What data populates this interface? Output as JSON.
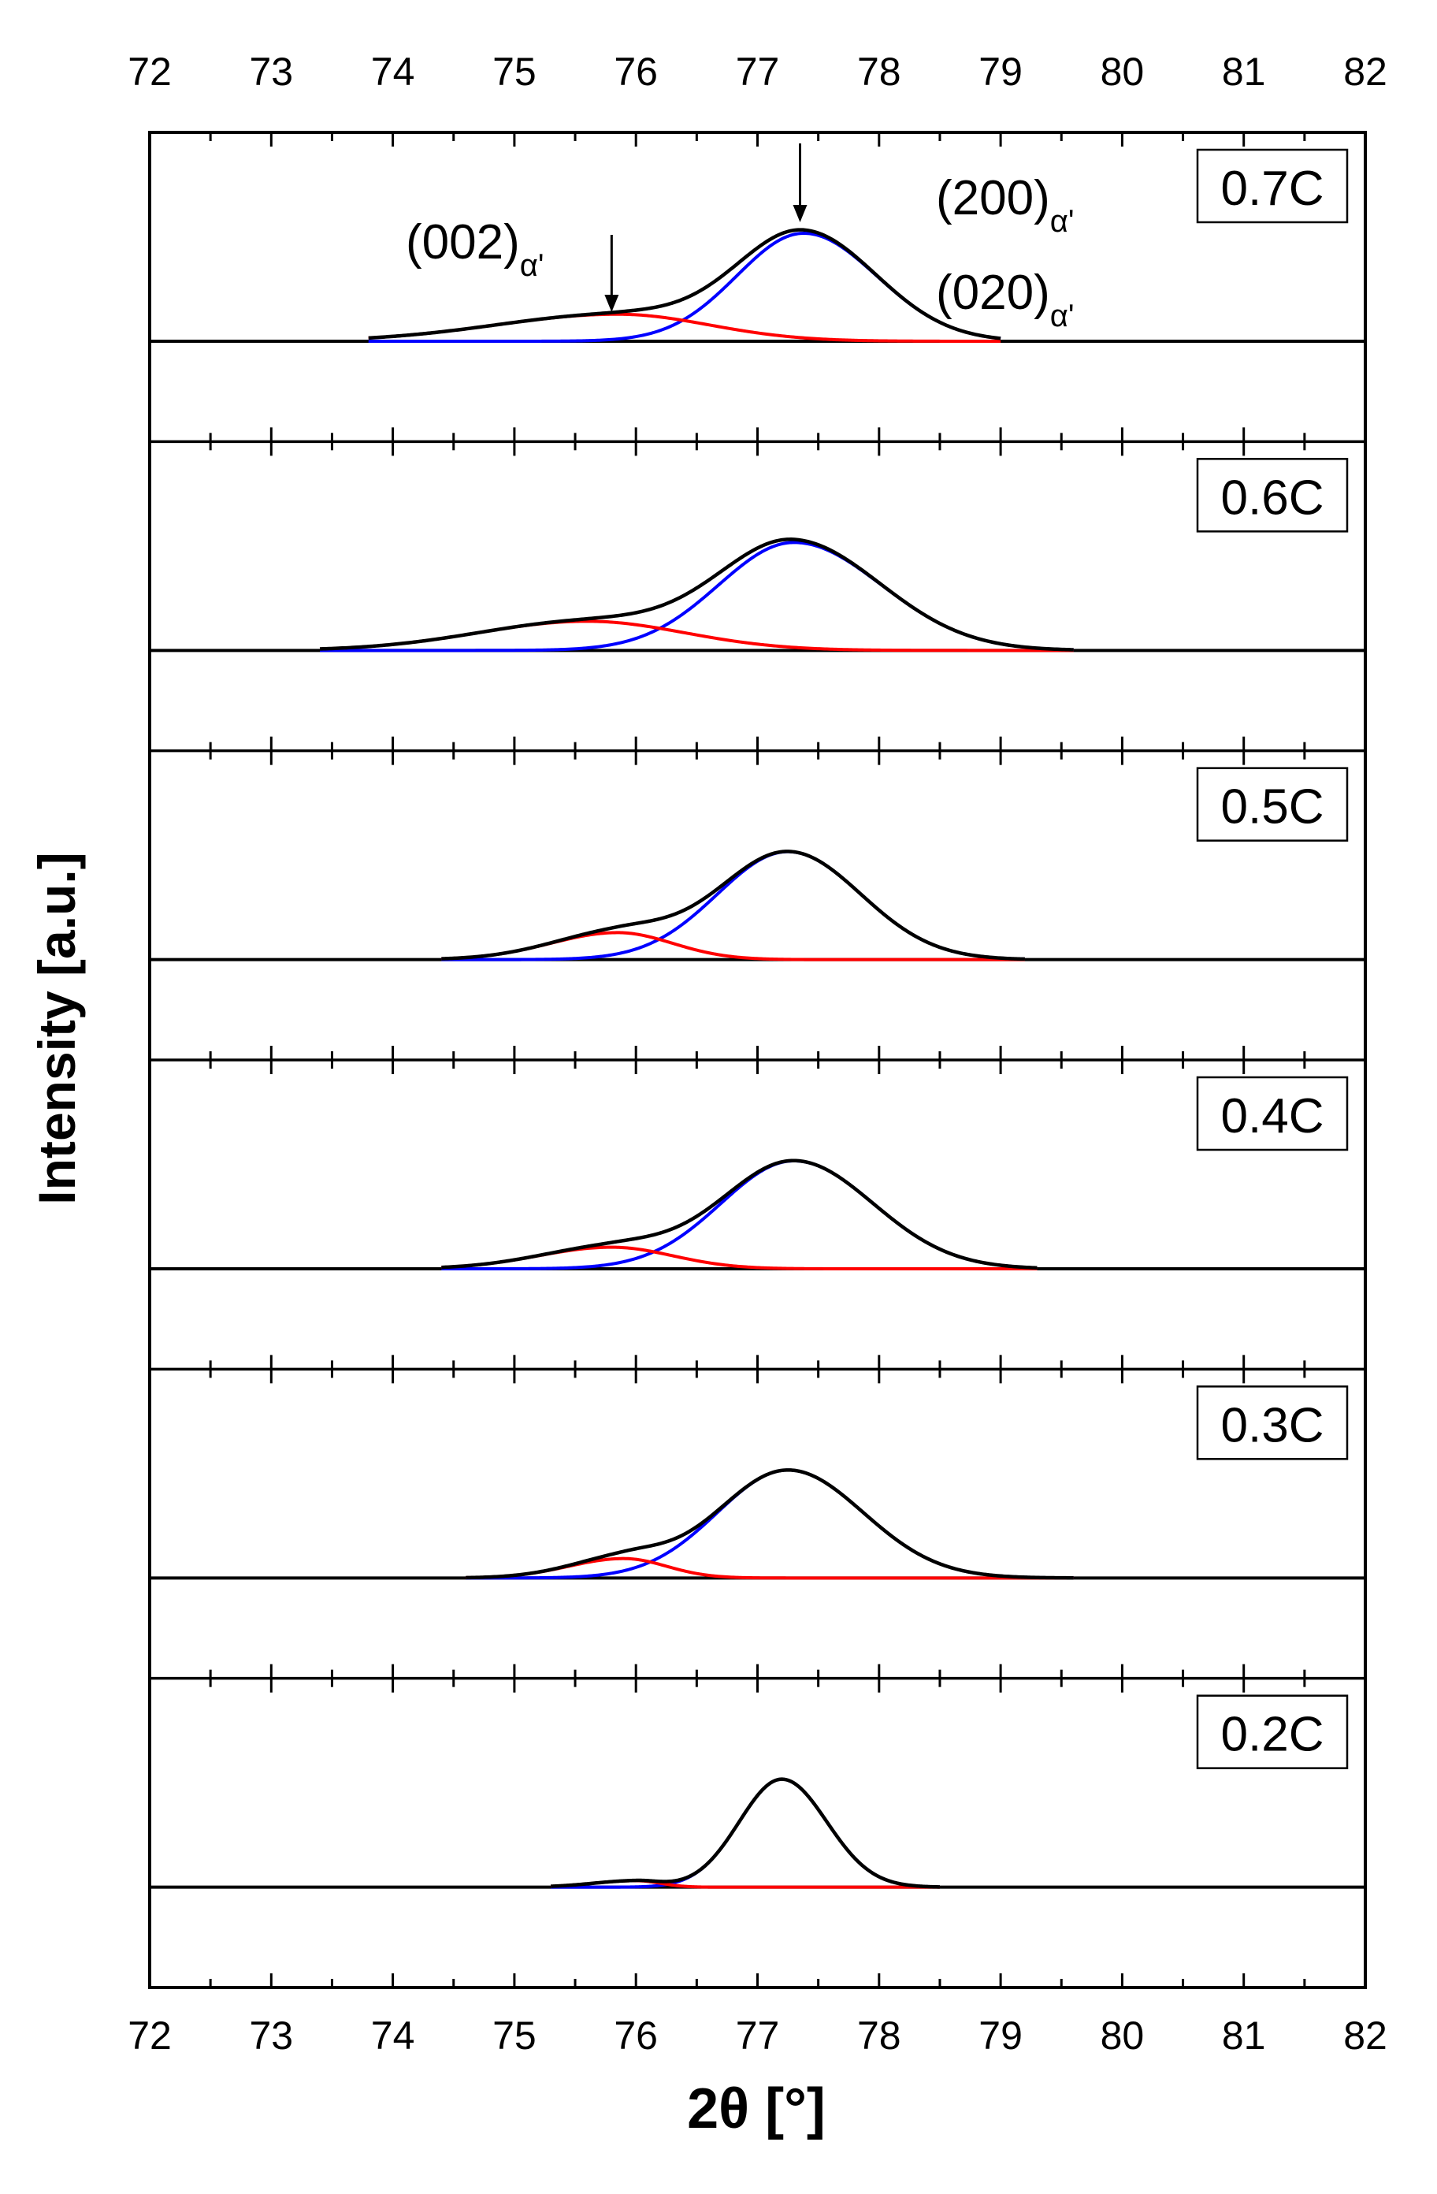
{
  "chart_data": {
    "type": "line",
    "title": "",
    "xlabel": "2θ [°]",
    "ylabel": "Intensity [a.u.]",
    "xlim": [
      72,
      82
    ],
    "ylim": [
      0,
      1
    ],
    "x_ticks": [
      "72",
      "73",
      "74",
      "75",
      "76",
      "77",
      "78",
      "79",
      "80",
      "81",
      "82"
    ],
    "series_colors": {
      "sum": "#000000",
      "peak_002": "#ff0000",
      "peak_200_020": "#0000ff"
    },
    "annotations": [
      {
        "main": "(002)",
        "sub": "α'",
        "x": 75.8
      },
      {
        "main": "(200)",
        "sub": "α'",
        "x": 77.35
      },
      {
        "main": "(020)",
        "sub": "α'",
        "x": 77.35
      }
    ],
    "panels": [
      {
        "label": "0.7C",
        "x_range": [
          73.8,
          79.0
        ],
        "peak_002": {
          "center": 75.85,
          "height": 0.25,
          "sigma_left": 1.0,
          "sigma_right": 0.75
        },
        "peak_200_020": {
          "center": 77.38,
          "height": 1.0,
          "sigma_left": 0.55,
          "sigma_right": 0.6
        }
      },
      {
        "label": "0.6C",
        "x_range": [
          73.4,
          79.6
        ],
        "peak_002": {
          "center": 75.6,
          "height": 0.27,
          "sigma_left": 0.9,
          "sigma_right": 0.8
        },
        "peak_200_020": {
          "center": 77.3,
          "height": 1.0,
          "sigma_left": 0.62,
          "sigma_right": 0.72
        }
      },
      {
        "label": "0.5C",
        "x_range": [
          74.4,
          79.2
        ],
        "peak_002": {
          "center": 75.85,
          "height": 0.25,
          "sigma_left": 0.55,
          "sigma_right": 0.45
        },
        "peak_200_020": {
          "center": 77.25,
          "height": 1.0,
          "sigma_left": 0.58,
          "sigma_right": 0.6
        }
      },
      {
        "label": "0.4C",
        "x_range": [
          74.4,
          79.3
        ],
        "peak_002": {
          "center": 75.8,
          "height": 0.2,
          "sigma_left": 0.6,
          "sigma_right": 0.5
        },
        "peak_200_020": {
          "center": 77.3,
          "height": 1.0,
          "sigma_left": 0.6,
          "sigma_right": 0.65
        }
      },
      {
        "label": "0.3C",
        "x_range": [
          74.6,
          79.6
        ],
        "peak_002": {
          "center": 75.9,
          "height": 0.18,
          "sigma_left": 0.45,
          "sigma_right": 0.35
        },
        "peak_200_020": {
          "center": 77.25,
          "height": 1.0,
          "sigma_left": 0.58,
          "sigma_right": 0.62
        }
      },
      {
        "label": "0.2C",
        "x_range": [
          75.3,
          78.5
        ],
        "peak_002": {
          "center": 76.0,
          "height": 0.06,
          "sigma_left": 0.35,
          "sigma_right": 0.2
        },
        "peak_200_020": {
          "center": 77.2,
          "height": 1.0,
          "sigma_left": 0.35,
          "sigma_right": 0.37
        }
      }
    ]
  }
}
